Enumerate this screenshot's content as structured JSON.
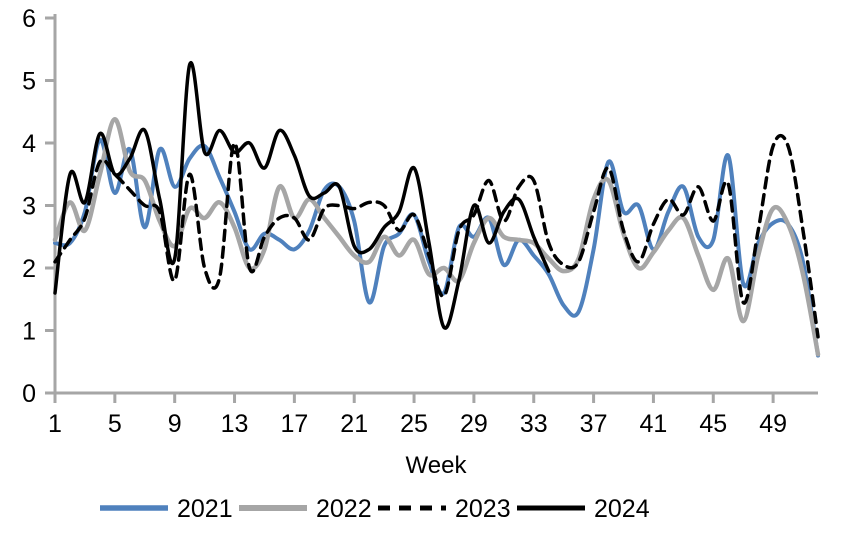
{
  "chart_data": {
    "type": "line",
    "title": "",
    "xlabel": "Week",
    "ylabel": "",
    "xlim": [
      1,
      52
    ],
    "ylim": [
      0,
      6
    ],
    "x_ticks": [
      1,
      5,
      9,
      13,
      17,
      21,
      25,
      29,
      33,
      37,
      41,
      45,
      49
    ],
    "y_ticks": [
      0,
      1,
      2,
      3,
      4,
      5,
      6
    ],
    "grid": false,
    "legend_position": "bottom",
    "axis_color": "#A6A6A6",
    "text_color": "#000000",
    "x": [
      1,
      2,
      3,
      4,
      5,
      6,
      7,
      8,
      9,
      10,
      11,
      12,
      13,
      14,
      15,
      16,
      17,
      18,
      19,
      20,
      21,
      22,
      23,
      24,
      25,
      26,
      27,
      28,
      29,
      30,
      31,
      32,
      33,
      34,
      35,
      36,
      37,
      38,
      39,
      40,
      41,
      42,
      43,
      44,
      45,
      46,
      47,
      48,
      49,
      50,
      51,
      52
    ],
    "series": [
      {
        "name": "2021",
        "color": "#4F81BD",
        "dash": null,
        "width": 4,
        "values": [
          2.4,
          2.4,
          2.9,
          4.05,
          3.2,
          3.9,
          2.65,
          3.9,
          3.3,
          3.75,
          3.95,
          3.45,
          2.9,
          2.3,
          2.55,
          2.45,
          2.3,
          2.6,
          3.25,
          3.3,
          2.75,
          1.45,
          2.35,
          2.55,
          2.85,
          2.1,
          1.6,
          2.65,
          2.5,
          2.8,
          2.05,
          2.45,
          2.2,
          1.9,
          1.4,
          1.3,
          2.3,
          3.7,
          2.9,
          3.0,
          2.3,
          2.9,
          3.3,
          2.5,
          2.45,
          3.8,
          1.75,
          2.4,
          2.72,
          2.7,
          2.1,
          0.6
        ]
      },
      {
        "name": "2022",
        "color": "#A6A6A6",
        "dash": null,
        "width": 4.5,
        "values": [
          2.45,
          3.05,
          2.6,
          3.5,
          4.38,
          3.55,
          3.4,
          2.75,
          2.35,
          2.95,
          2.8,
          3.05,
          2.65,
          2.0,
          2.3,
          3.3,
          2.8,
          3.1,
          2.8,
          2.5,
          2.2,
          2.1,
          2.5,
          2.2,
          2.45,
          1.9,
          2.0,
          1.8,
          2.4,
          2.8,
          2.5,
          2.45,
          2.4,
          2.15,
          1.95,
          2.15,
          3.1,
          3.4,
          2.55,
          2.0,
          2.25,
          2.6,
          2.8,
          2.2,
          1.65,
          2.15,
          1.15,
          2.2,
          2.95,
          2.7,
          1.9,
          0.62
        ]
      },
      {
        "name": "2023",
        "color": "#000000",
        "dash": [
          10,
          7
        ],
        "width": 3.5,
        "values": [
          2.1,
          2.45,
          2.8,
          3.7,
          3.5,
          3.25,
          3.0,
          2.9,
          1.8,
          3.5,
          2.0,
          1.85,
          4.0,
          2.0,
          2.5,
          2.8,
          2.8,
          2.45,
          2.95,
          3.0,
          2.95,
          3.05,
          3.0,
          2.6,
          2.85,
          2.2,
          1.55,
          2.6,
          2.85,
          3.4,
          2.75,
          3.3,
          3.4,
          2.4,
          2.05,
          2.1,
          2.9,
          3.6,
          2.6,
          2.1,
          2.7,
          3.1,
          2.85,
          3.3,
          2.75,
          3.35,
          1.45,
          2.6,
          3.95,
          3.95,
          2.6,
          0.9
        ]
      },
      {
        "name": "2024",
        "color": "#000000",
        "dash": null,
        "width": 3.5,
        "values": [
          1.6,
          3.5,
          3.05,
          4.15,
          3.5,
          3.75,
          4.2,
          3.1,
          2.15,
          5.25,
          3.85,
          4.2,
          3.85,
          4.0,
          3.6,
          4.2,
          3.8,
          3.15,
          3.2,
          3.3,
          2.35,
          2.3,
          2.65,
          2.9,
          3.6,
          2.4,
          1.05,
          1.8,
          3.0,
          2.4,
          2.9,
          3.1,
          2.5,
          1.95,
          null,
          null,
          null,
          null,
          null,
          null,
          null,
          null,
          null,
          null,
          null,
          null,
          null,
          null,
          null,
          null,
          null,
          null
        ]
      }
    ]
  }
}
